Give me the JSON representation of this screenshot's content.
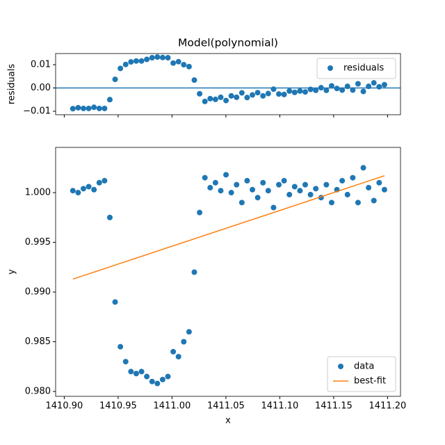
{
  "chart_data": [
    {
      "type": "scatter",
      "title": "Model(polynomial)",
      "y_label": "residuals",
      "xlim": [
        1410.892,
        1411.212
      ],
      "ylim": [
        -0.0115,
        0.0148
      ],
      "xticks": [
        1410.9,
        1410.95,
        1411.0,
        1411.05,
        1411.1,
        1411.15,
        1411.2
      ],
      "xtick_labels": false,
      "yticks": [
        {
          "value": -0.01,
          "label": "−0.01"
        },
        {
          "value": 0,
          "label": "0.00"
        },
        {
          "value": 0.01,
          "label": "0.01"
        }
      ],
      "hline": 0,
      "hline_color": "#1f77b4",
      "legend": "upper right",
      "series": [
        {
          "name": "residuals",
          "color": "#1f77b4",
          "mode": "markers",
          "x": [
            1410.908,
            1410.9129,
            1410.9178,
            1410.9227,
            1410.9276,
            1410.9325,
            1410.9374,
            1410.9423,
            1410.9472,
            1410.9521,
            1410.957,
            1410.9619,
            1410.9668,
            1410.9717,
            1410.9766,
            1410.9815,
            1410.9864,
            1410.9913,
            1410.9962,
            1411.0011,
            1411.006,
            1411.0109,
            1411.0158,
            1411.0207,
            1411.0256,
            1411.0305,
            1411.0354,
            1411.0403,
            1411.0452,
            1411.0501,
            1411.055,
            1411.0599,
            1411.0648,
            1411.0697,
            1411.0746,
            1411.0795,
            1411.0844,
            1411.0893,
            1411.0942,
            1411.0991,
            1411.104,
            1411.1089,
            1411.1138,
            1411.1187,
            1411.1236,
            1411.1285,
            1411.1334,
            1411.1383,
            1411.1432,
            1411.1481,
            1411.153,
            1411.1579,
            1411.1628,
            1411.1677,
            1411.1726,
            1411.1775,
            1411.1824,
            1411.1873,
            1411.1922,
            1411.1971
          ],
          "values": [
            -0.0089,
            -0.0085,
            -0.0088,
            -0.0088,
            -0.0083,
            -0.0088,
            -0.0088,
            -0.005,
            0.0037,
            0.0084,
            0.0101,
            0.0112,
            0.0116,
            0.0116,
            0.0123,
            0.013,
            0.0133,
            0.0131,
            0.013,
            0.0107,
            0.0113,
            0.01,
            0.0092,
            0.0034,
            -0.0025,
            -0.0058,
            -0.0046,
            -0.0049,
            -0.004,
            -0.0054,
            -0.0034,
            -0.004,
            -0.0021,
            -0.0041,
            -0.003,
            -0.002,
            -0.0034,
            -0.0024,
            -0.0005,
            -0.0026,
            -0.0028,
            -0.0013,
            -0.0019,
            -0.0013,
            -0.0017,
            -0.0006,
            -0.001,
            0.0001,
            -0.001,
            0.0009,
            -0.0002,
            -0.0009,
            0.0007,
            -0.0009,
            0.0018,
            -0.0015,
            0.0007,
            0.0022,
            0.0005,
            0.0014
          ]
        }
      ]
    },
    {
      "type": "scatter",
      "x_label": "x",
      "y_label": "y",
      "xlim": [
        1410.892,
        1411.212
      ],
      "ylim": [
        0.97951,
        1.00455
      ],
      "xticks": [
        {
          "value": 1410.9,
          "label": "1410.90"
        },
        {
          "value": 1410.95,
          "label": "1410.95"
        },
        {
          "value": 1411.0,
          "label": "1411.00"
        },
        {
          "value": 1411.05,
          "label": "1411.05"
        },
        {
          "value": 1411.1,
          "label": "1411.10"
        },
        {
          "value": 1411.15,
          "label": "1411.15"
        },
        {
          "value": 1411.2,
          "label": "1411.20"
        }
      ],
      "xtick_labels": true,
      "yticks": [
        {
          "value": 0.98,
          "label": "0.980"
        },
        {
          "value": 0.985,
          "label": "0.985"
        },
        {
          "value": 0.99,
          "label": "0.990"
        },
        {
          "value": 0.995,
          "label": "0.995"
        },
        {
          "value": 1.0,
          "label": "1.000"
        }
      ],
      "legend": "lower right",
      "series": [
        {
          "name": "data",
          "color": "#1f77b4",
          "mode": "markers",
          "x": [
            1410.908,
            1410.9129,
            1410.9178,
            1410.9227,
            1410.9276,
            1410.9325,
            1410.9374,
            1410.9423,
            1410.9472,
            1410.9521,
            1410.957,
            1410.9619,
            1410.9668,
            1410.9717,
            1410.9766,
            1410.9815,
            1410.9864,
            1410.9913,
            1410.9962,
            1411.0011,
            1411.006,
            1411.0109,
            1411.0158,
            1411.0207,
            1411.0256,
            1411.0305,
            1411.0354,
            1411.0403,
            1411.0452,
            1411.0501,
            1411.055,
            1411.0599,
            1411.0648,
            1411.0697,
            1411.0746,
            1411.0795,
            1411.0844,
            1411.0893,
            1411.0942,
            1411.0991,
            1411.104,
            1411.1089,
            1411.1138,
            1411.1187,
            1411.1236,
            1411.1285,
            1411.1334,
            1411.1383,
            1411.1432,
            1411.1481,
            1411.153,
            1411.1579,
            1411.1628,
            1411.1677,
            1411.1726,
            1411.1775,
            1411.1824,
            1411.1873,
            1411.1922,
            1411.1971
          ],
          "values": [
            1.0002,
            1.0,
            1.0004,
            1.0006,
            1.0003,
            1.001,
            1.0012,
            0.9975,
            0.989,
            0.9845,
            0.983,
            0.982,
            0.9818,
            0.982,
            0.9815,
            0.981,
            0.9808,
            0.9812,
            0.9815,
            0.984,
            0.9835,
            0.985,
            0.986,
            0.992,
            0.998,
            1.0015,
            1.0005,
            1.001,
            1.0002,
            1.0018,
            1.0,
            1.0008,
            0.999,
            1.0012,
            1.0003,
            0.9995,
            1.001,
            1.0002,
            0.9985,
            1.0008,
            1.0012,
            0.9998,
            1.0006,
            1.0002,
            1.0008,
            0.9998,
            1.0004,
            0.9995,
            1.0008,
            0.999,
            1.0003,
            1.0012,
            0.9998,
            1.0015,
            0.999,
            1.0025,
            1.0005,
            0.9992,
            1.001,
            1.0003
          ]
        },
        {
          "name": "best-fit",
          "color": "#ff7f0e",
          "mode": "line",
          "x": [
            1410.908,
            1411.1971
          ],
          "values": [
            0.9913,
            1.0017
          ]
        }
      ]
    }
  ]
}
